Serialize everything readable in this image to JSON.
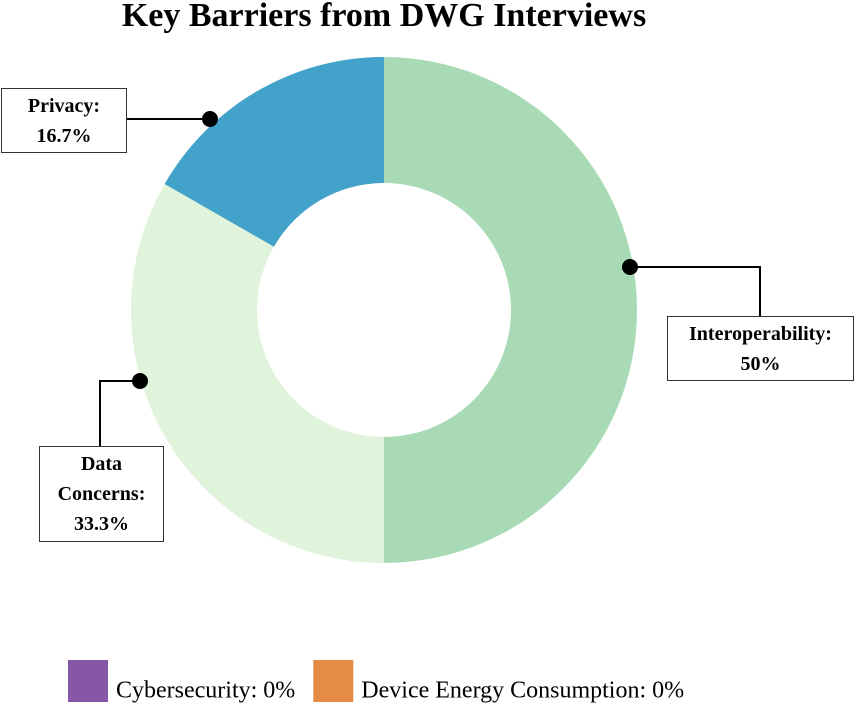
{
  "chart_data": {
    "type": "donut",
    "title": "Key Barriers from DWG Interviews",
    "labels": [
      "Interoperability: 50%",
      "Data Concerns: 33.3%",
      "Privacy: 16.7%",
      "Cybersecurity: 0%",
      "Device Energy Consumption: 0%"
    ],
    "values": [
      50,
      33.3,
      16.7,
      0,
      0
    ],
    "colors": [
      "#a8dbb5",
      "#e0f3db",
      "#43a2ca",
      "#8856a7",
      "#e58b45"
    ]
  }
}
